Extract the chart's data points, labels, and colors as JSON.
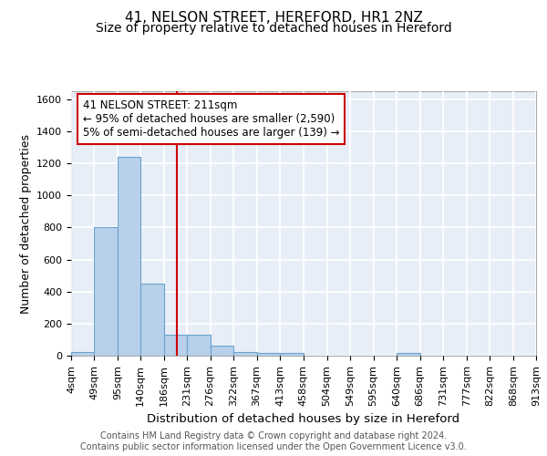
{
  "title": "41, NELSON STREET, HEREFORD, HR1 2NZ",
  "subtitle": "Size of property relative to detached houses in Hereford",
  "xlabel": "Distribution of detached houses by size in Hereford",
  "ylabel": "Number of detached properties",
  "bin_edges": [
    4,
    49,
    95,
    140,
    186,
    231,
    276,
    322,
    367,
    413,
    458,
    504,
    549,
    595,
    640,
    686,
    731,
    777,
    822,
    868,
    913
  ],
  "bar_heights": [
    25,
    800,
    1240,
    450,
    130,
    130,
    65,
    25,
    15,
    15,
    0,
    0,
    0,
    0,
    15,
    0,
    0,
    0,
    0,
    0
  ],
  "bar_color": "#b8d0ea",
  "bar_edge_color": "#6aa3cc",
  "background_color": "#e8eef8",
  "grid_color": "#ffffff",
  "vline_x": 211,
  "vline_color": "#cc0000",
  "ylim": [
    0,
    1650
  ],
  "yticks": [
    0,
    200,
    400,
    600,
    800,
    1000,
    1200,
    1400,
    1600
  ],
  "tick_labels": [
    "4sqm",
    "49sqm",
    "95sqm",
    "140sqm",
    "186sqm",
    "231sqm",
    "276sqm",
    "322sqm",
    "367sqm",
    "413sqm",
    "458sqm",
    "504sqm",
    "549sqm",
    "595sqm",
    "640sqm",
    "686sqm",
    "731sqm",
    "777sqm",
    "822sqm",
    "868sqm",
    "913sqm"
  ],
  "annotation_line1": "41 NELSON STREET: 211sqm",
  "annotation_line2": "← 95% of detached houses are smaller (2,590)",
  "annotation_line3": "5% of semi-detached houses are larger (139) →",
  "footer_text": "Contains HM Land Registry data © Crown copyright and database right 2024.\nContains public sector information licensed under the Open Government Licence v3.0.",
  "title_fontsize": 11,
  "subtitle_fontsize": 10,
  "xlabel_fontsize": 9.5,
  "ylabel_fontsize": 9,
  "tick_fontsize": 8,
  "annotation_fontsize": 8.5,
  "footer_fontsize": 7
}
